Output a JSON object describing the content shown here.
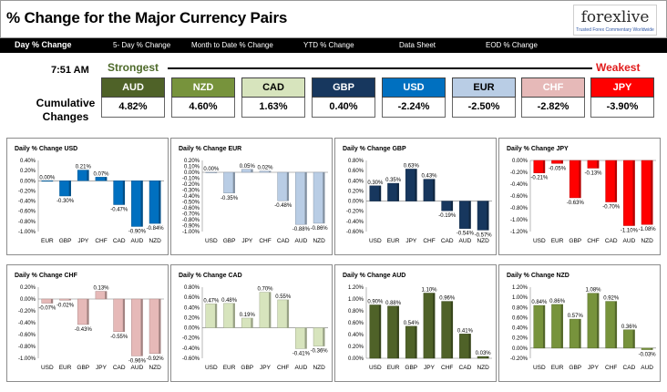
{
  "header": {
    "title": "% Change for the Major Currency Pairs",
    "logo_text": "forexlive",
    "logo_tagline": "Trusted Forex Commentary Worldwide"
  },
  "nav": [
    {
      "label": "Day % Change",
      "active": true
    },
    {
      "label": "5- Day % Change",
      "active": false
    },
    {
      "label": "Month to Date % Change",
      "active": false
    },
    {
      "label": "YTD % Change",
      "active": false
    },
    {
      "label": "Data Sheet",
      "active": false
    },
    {
      "label": "EOD % Change",
      "active": false
    }
  ],
  "scale": {
    "time": "7:51 AM",
    "strongest": "Strongest",
    "weakest": "Weakest",
    "cumulative_label_1": "Cumulative",
    "cumulative_label_2": "Changes"
  },
  "currencies": [
    {
      "code": "AUD",
      "value": "4.82%",
      "color": "#4f6228",
      "text_color": "#ffffff"
    },
    {
      "code": "NZD",
      "value": "4.60%",
      "color": "#77933c",
      "text_color": "#ffffff"
    },
    {
      "code": "CAD",
      "value": "1.63%",
      "color": "#d7e4bd",
      "text_color": "#000000"
    },
    {
      "code": "GBP",
      "value": "0.40%",
      "color": "#17375e",
      "text_color": "#ffffff"
    },
    {
      "code": "USD",
      "value": "-2.24%",
      "color": "#0070c0",
      "text_color": "#ffffff"
    },
    {
      "code": "EUR",
      "value": "-2.50%",
      "color": "#b9cde5",
      "text_color": "#000000"
    },
    {
      "code": "CHF",
      "value": "-2.82%",
      "color": "#e6b9b8",
      "text_color": "#ffffff"
    },
    {
      "code": "JPY",
      "value": "-3.90%",
      "color": "#ff0000",
      "text_color": "#ffffff"
    }
  ],
  "chart_data": [
    {
      "type": "bar",
      "title": "Daily % Change USD",
      "color": "#0070c0",
      "categories": [
        "EUR",
        "GBP",
        "JPY",
        "CHF",
        "CAD",
        "AUD",
        "NZD"
      ],
      "values": [
        0.0,
        -0.3,
        0.21,
        0.07,
        -0.47,
        -0.9,
        -0.84
      ],
      "labels": [
        "0.00%",
        "-0.30%",
        "0.21%",
        "0.07%",
        "-0.47%",
        "-0.90%",
        "-0.84%"
      ],
      "ylim": [
        -1.0,
        0.4
      ],
      "ticks": [
        0.4,
        0.2,
        0.0,
        -0.2,
        -0.4,
        -0.6,
        -0.8,
        -1.0
      ],
      "tick_labels": [
        "0.40%",
        "0.20%",
        "0.00%",
        "-0.20%",
        "-0.40%",
        "-0.60%",
        "-0.80%",
        "-1.00%"
      ]
    },
    {
      "type": "bar",
      "title": "Daily % Change EUR",
      "color": "#b9cde5",
      "categories": [
        "USD",
        "GBP",
        "JPY",
        "CHF",
        "CAD",
        "AUD",
        "NZD"
      ],
      "values": [
        0.0,
        -0.35,
        0.05,
        0.02,
        -0.48,
        -0.88,
        -0.86
      ],
      "labels": [
        "0.00%",
        "-0.35%",
        "0.05%",
        "0.02%",
        "-0.48%",
        "-0.88%",
        "-0.86%"
      ],
      "ylim": [
        -1.0,
        0.2
      ],
      "ticks": [
        0.2,
        0.1,
        0.0,
        -0.1,
        -0.2,
        -0.3,
        -0.4,
        -0.5,
        -0.6,
        -0.7,
        -0.8,
        -0.9,
        -1.0
      ],
      "tick_labels": [
        "0.20%",
        "0.10%",
        "0.00%",
        "-0.10%",
        "-0.20%",
        "-0.30%",
        "-0.40%",
        "-0.50%",
        "-0.60%",
        "-0.70%",
        "-0.80%",
        "-0.90%",
        "-1.00%"
      ]
    },
    {
      "type": "bar",
      "title": "Daily % Change GBP",
      "color": "#17375e",
      "categories": [
        "USD",
        "EUR",
        "JPY",
        "CHF",
        "CAD",
        "AUD",
        "NZD"
      ],
      "values": [
        0.3,
        0.35,
        0.63,
        0.43,
        -0.19,
        -0.54,
        -0.57
      ],
      "labels": [
        "0.30%",
        "0.35%",
        "0.63%",
        "0.43%",
        "-0.19%",
        "-0.54%",
        "-0.57%"
      ],
      "ylim": [
        -0.6,
        0.8
      ],
      "ticks": [
        0.8,
        0.6,
        0.4,
        0.2,
        0.0,
        -0.2,
        -0.4,
        -0.6
      ],
      "tick_labels": [
        "0.80%",
        "0.60%",
        "0.40%",
        "0.20%",
        "0.00%",
        "-0.20%",
        "-0.40%",
        "-0.60%"
      ]
    },
    {
      "type": "bar",
      "title": "Daily % Change JPY",
      "color": "#ff0000",
      "categories": [
        "USD",
        "EUR",
        "GBP",
        "CHF",
        "CAD",
        "AUD",
        "NZD"
      ],
      "values": [
        -0.21,
        -0.05,
        -0.63,
        -0.13,
        -0.7,
        -1.1,
        -1.08
      ],
      "labels": [
        "-0.21%",
        "-0.05%",
        "-0.63%",
        "-0.13%",
        "-0.70%",
        "-1.10%",
        "-1.08%"
      ],
      "ylim": [
        -1.2,
        0.0
      ],
      "ticks": [
        0.0,
        -0.2,
        -0.4,
        -0.6,
        -0.8,
        -1.0,
        -1.2
      ],
      "tick_labels": [
        "0.00%",
        "-0.20%",
        "-0.40%",
        "-0.60%",
        "-0.80%",
        "-1.00%",
        "-1.20%"
      ]
    },
    {
      "type": "bar",
      "title": "Daily % Change CHF",
      "color": "#e6b9b8",
      "categories": [
        "USD",
        "EUR",
        "GBP",
        "JPY",
        "CAD",
        "AUD",
        "NZD"
      ],
      "values": [
        -0.07,
        -0.02,
        -0.43,
        0.13,
        -0.55,
        -0.96,
        -0.92
      ],
      "labels": [
        "-0.07%",
        "-0.02%",
        "-0.43%",
        "0.13%",
        "-0.55%",
        "-0.96%",
        "-0.92%"
      ],
      "ylim": [
        -1.0,
        0.2
      ],
      "ticks": [
        0.2,
        0.0,
        -0.2,
        -0.4,
        -0.6,
        -0.8,
        -1.0
      ],
      "tick_labels": [
        "0.20%",
        "0.00%",
        "-0.20%",
        "-0.40%",
        "-0.60%",
        "-0.80%",
        "-1.00%"
      ]
    },
    {
      "type": "bar",
      "title": "Daily % Change CAD",
      "color": "#d7e4bd",
      "categories": [
        "USD",
        "EUR",
        "GBP",
        "JPY",
        "CHF",
        "AUD",
        "NZD"
      ],
      "values": [
        0.47,
        0.48,
        0.19,
        0.7,
        0.55,
        -0.41,
        -0.36
      ],
      "labels": [
        "0.47%",
        "0.48%",
        "0.19%",
        "0.70%",
        "0.55%",
        "-0.41%",
        "-0.36%"
      ],
      "ylim": [
        -0.6,
        0.8
      ],
      "ticks": [
        0.8,
        0.6,
        0.4,
        0.2,
        0.0,
        -0.2,
        -0.4,
        -0.6
      ],
      "tick_labels": [
        "0.80%",
        "0.60%",
        "0.40%",
        "0.20%",
        "0.00%",
        "-0.20%",
        "-0.40%",
        "-0.60%"
      ]
    },
    {
      "type": "bar",
      "title": "Daily % Change AUD",
      "color": "#4f6228",
      "categories": [
        "USD",
        "EUR",
        "GBP",
        "JPY",
        "CHF",
        "CAD",
        "NZD"
      ],
      "values": [
        0.9,
        0.88,
        0.54,
        1.1,
        0.96,
        0.41,
        0.03
      ],
      "labels": [
        "0.90%",
        "0.88%",
        "0.54%",
        "1.10%",
        "0.96%",
        "0.41%",
        "0.03%"
      ],
      "ylim": [
        0.0,
        1.2
      ],
      "ticks": [
        1.2,
        1.0,
        0.8,
        0.6,
        0.4,
        0.2,
        0.0
      ],
      "tick_labels": [
        "1.20%",
        "1.00%",
        "0.80%",
        "0.60%",
        "0.40%",
        "0.20%",
        "0.00%"
      ]
    },
    {
      "type": "bar",
      "title": "Daily % Change NZD",
      "color": "#77933c",
      "categories": [
        "USD",
        "EUR",
        "GBP",
        "JPY",
        "CHF",
        "CAD",
        "AUD"
      ],
      "values": [
        0.84,
        0.86,
        0.57,
        1.08,
        0.92,
        0.36,
        -0.03
      ],
      "labels": [
        "0.84%",
        "0.86%",
        "0.57%",
        "1.08%",
        "0.92%",
        "0.36%",
        "-0.03%"
      ],
      "ylim": [
        -0.2,
        1.2
      ],
      "ticks": [
        1.2,
        1.0,
        0.8,
        0.6,
        0.4,
        0.2,
        0.0,
        -0.2
      ],
      "tick_labels": [
        "1.20%",
        "1.00%",
        "0.80%",
        "0.60%",
        "0.40%",
        "0.20%",
        "0.00%",
        "-0.20%"
      ]
    }
  ]
}
